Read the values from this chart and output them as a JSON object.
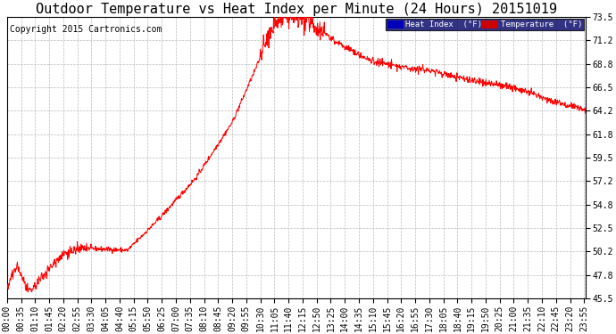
{
  "title": "Outdoor Temperature vs Heat Index per Minute (24 Hours) 20151019",
  "copyright": "Copyright 2015 Cartronics.com",
  "legend_heat_index": "Heat Index  (°F)",
  "legend_temperature": "Temperature  (°F)",
  "line_color": "#ff0000",
  "background_color": "#ffffff",
  "grid_color": "#bbbbbb",
  "ylim": [
    45.5,
    73.5
  ],
  "yticks": [
    45.5,
    47.8,
    50.2,
    52.5,
    54.8,
    57.2,
    59.5,
    61.8,
    64.2,
    66.5,
    68.8,
    71.2,
    73.5
  ],
  "title_fontsize": 11,
  "copyright_fontsize": 7,
  "tick_fontsize": 7,
  "legend_heat_bg": "#0000bb",
  "legend_temp_bg": "#cc0000",
  "keypoints_x": [
    0,
    25,
    55,
    90,
    140,
    190,
    250,
    300,
    380,
    470,
    560,
    620,
    650,
    670,
    700,
    730,
    760,
    820,
    900,
    980,
    1050,
    1120,
    1180,
    1260,
    1350,
    1420,
    1439
  ],
  "keypoints_y": [
    46.5,
    48.8,
    46.0,
    47.8,
    50.0,
    50.5,
    50.4,
    50.3,
    53.5,
    57.5,
    63.0,
    68.5,
    71.5,
    73.0,
    73.5,
    73.3,
    72.8,
    71.0,
    69.2,
    68.5,
    68.2,
    67.5,
    67.0,
    66.5,
    65.2,
    64.5,
    64.2
  ]
}
